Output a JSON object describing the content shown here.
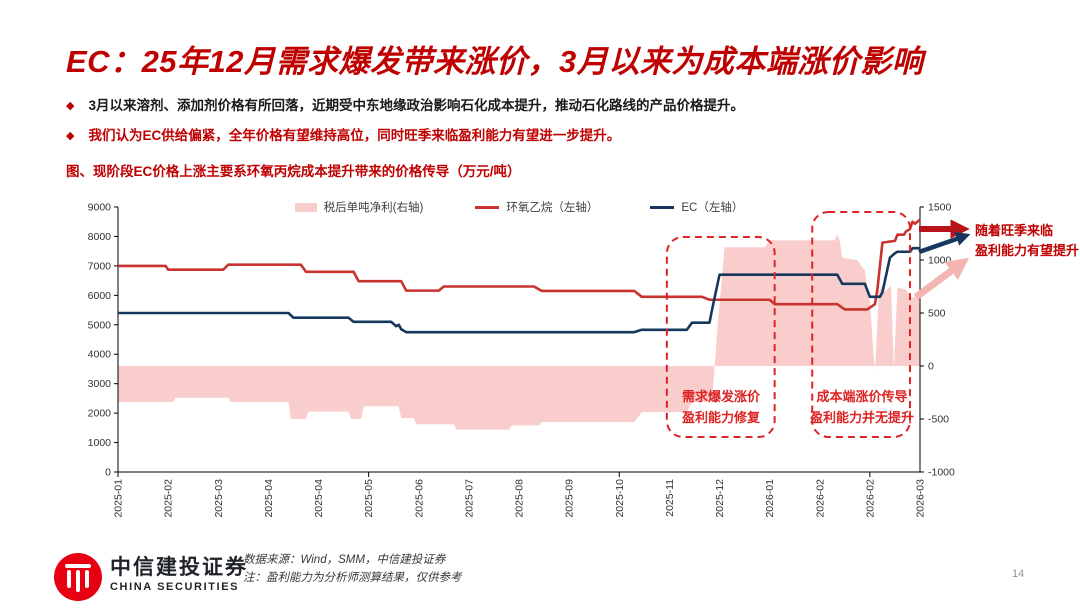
{
  "slide": {
    "title": "EC：25年12月需求爆发带来涨价，3月以来为成本端涨价影响",
    "bullets": [
      {
        "text": "3月以来溶剂、添加剂价格有所回落，近期受中东地缘政治影响石化成本提升，推动石化路线的产品价格提升。"
      },
      {
        "text": "我们认为EC供给偏紧，全年价格有望维持高位，同时旺季来临盈利能力有望进一步提升。"
      }
    ],
    "chart_caption": "图、现阶段EC价格上涨主要系环氧丙烷成本提升带来的价格传导（万元/吨）",
    "page_number": "14"
  },
  "footer": {
    "logo_cn": "中信建投证券",
    "logo_en": "CHINA SECURITIES",
    "source_line": "数据来源：Wind，SMM，中信建投证券",
    "note_line": "注：盈利能力为分析师测算结果，仅供参考"
  },
  "colors": {
    "title_red": "#bf0000",
    "annotation_red": "#dd2424",
    "eo_line": "#c9332f",
    "ec_line": "#17375e",
    "profit_area": "#facdcd",
    "arrow_red": "#b8131b",
    "arrow_blue": "#17375e",
    "arrow_pink": "#f2b5b1"
  },
  "chart_data": {
    "type": "line",
    "title": "图、现阶段EC价格上涨主要系环氧丙烷成本提升带来的价格传导（万元/吨）",
    "legend_position": "top",
    "grid": false,
    "x_labels": [
      "2025-01",
      "2025-02",
      "2025-03",
      "2025-04",
      "2025-04",
      "2025-05",
      "2025-06",
      "2025-07",
      "2025-08",
      "2025-09",
      "2025-10",
      "2025-11",
      "2025-12",
      "2026-01",
      "2026-02",
      "2026-02",
      "2026-03"
    ],
    "left_axis": {
      "min": 0,
      "max": 9000,
      "step": 1000
    },
    "right_axis": {
      "min": -1000,
      "max": 1500,
      "step": 500
    },
    "series": [
      {
        "name": "税后单吨净利(右轴)",
        "type": "area",
        "axis": "right",
        "color": "#facdcd",
        "points": [
          [
            0,
            -340
          ],
          [
            1.1,
            -340
          ],
          [
            1.15,
            -300
          ],
          [
            2.2,
            -300
          ],
          [
            2.25,
            -340
          ],
          [
            3.4,
            -340
          ],
          [
            3.45,
            -500
          ],
          [
            3.75,
            -500
          ],
          [
            3.8,
            -430
          ],
          [
            4.6,
            -430
          ],
          [
            4.65,
            -500
          ],
          [
            4.85,
            -500
          ],
          [
            4.9,
            -380
          ],
          [
            5.6,
            -380
          ],
          [
            5.65,
            -490
          ],
          [
            5.9,
            -490
          ],
          [
            5.95,
            -550
          ],
          [
            6.7,
            -550
          ],
          [
            6.75,
            -600
          ],
          [
            7.8,
            -600
          ],
          [
            7.85,
            -560
          ],
          [
            8.4,
            -560
          ],
          [
            8.45,
            -530
          ],
          [
            10.3,
            -530
          ],
          [
            10.45,
            -435
          ],
          [
            11.35,
            -435
          ],
          [
            11.45,
            -340
          ],
          [
            11.85,
            -340
          ],
          [
            11.95,
            300
          ],
          [
            12.1,
            1120
          ],
          [
            12.9,
            1120
          ],
          [
            13.0,
            1185
          ],
          [
            14.3,
            1185
          ],
          [
            14.35,
            1240
          ],
          [
            14.4,
            1185
          ],
          [
            14.45,
            1020
          ],
          [
            14.75,
            1000
          ],
          [
            14.9,
            900
          ],
          [
            15.0,
            600
          ],
          [
            15.1,
            -60
          ],
          [
            15.18,
            700
          ],
          [
            15.25,
            760
          ],
          [
            15.3,
            700
          ],
          [
            15.42,
            760
          ],
          [
            15.48,
            -20
          ],
          [
            15.55,
            740
          ],
          [
            15.72,
            720
          ],
          [
            15.85,
            640
          ],
          [
            16,
            700
          ]
        ]
      },
      {
        "name": "环氧乙烷（左轴）",
        "type": "line",
        "axis": "left",
        "color": "#c9332f",
        "points": [
          [
            0,
            7000
          ],
          [
            0.95,
            7000
          ],
          [
            1.0,
            6870
          ],
          [
            2.1,
            6870
          ],
          [
            2.2,
            7040
          ],
          [
            3.65,
            7040
          ],
          [
            3.75,
            6800
          ],
          [
            4.7,
            6800
          ],
          [
            4.8,
            6480
          ],
          [
            5.65,
            6480
          ],
          [
            5.75,
            6160
          ],
          [
            6.4,
            6160
          ],
          [
            6.5,
            6300
          ],
          [
            8.3,
            6300
          ],
          [
            8.45,
            6150
          ],
          [
            10.3,
            6150
          ],
          [
            10.45,
            5950
          ],
          [
            11.65,
            5950
          ],
          [
            11.8,
            5850
          ],
          [
            13.0,
            5850
          ],
          [
            13.1,
            5700
          ],
          [
            14.35,
            5700
          ],
          [
            14.5,
            5520
          ],
          [
            14.95,
            5520
          ],
          [
            15.1,
            5700
          ],
          [
            15.15,
            6200
          ],
          [
            15.25,
            7790
          ],
          [
            15.5,
            7850
          ],
          [
            15.55,
            8060
          ],
          [
            15.68,
            8060
          ],
          [
            15.72,
            8170
          ],
          [
            15.8,
            8250
          ],
          [
            15.85,
            8500
          ],
          [
            15.9,
            8430
          ],
          [
            16,
            8570
          ]
        ]
      },
      {
        "name": "EC（左轴）",
        "type": "line",
        "axis": "left",
        "color": "#17375e",
        "points": [
          [
            0,
            5400
          ],
          [
            3.4,
            5400
          ],
          [
            3.5,
            5240
          ],
          [
            4.6,
            5240
          ],
          [
            4.7,
            5100
          ],
          [
            5.45,
            5100
          ],
          [
            5.55,
            4950
          ],
          [
            5.6,
            5000
          ],
          [
            5.65,
            4850
          ],
          [
            5.75,
            4750
          ],
          [
            10.3,
            4750
          ],
          [
            10.45,
            4830
          ],
          [
            11.35,
            4830
          ],
          [
            11.45,
            5070
          ],
          [
            11.8,
            5070
          ],
          [
            11.85,
            5500
          ],
          [
            12.0,
            6700
          ],
          [
            14.35,
            6700
          ],
          [
            14.45,
            6390
          ],
          [
            14.9,
            6390
          ],
          [
            15.0,
            5950
          ],
          [
            15.2,
            5950
          ],
          [
            15.25,
            6100
          ],
          [
            15.4,
            7280
          ],
          [
            15.5,
            7430
          ],
          [
            15.55,
            7480
          ],
          [
            15.8,
            7480
          ],
          [
            15.85,
            7600
          ],
          [
            16,
            7600
          ]
        ]
      }
    ],
    "annotation_boxes": [
      {
        "u1": 10.95,
        "u2": 13.1,
        "v1": 1190,
        "v2": 7980,
        "line1": "需求爆发涨价",
        "line2": "盈利能力修复"
      },
      {
        "u1": 13.85,
        "u2": 15.8,
        "v1": 1190,
        "v2": 8830,
        "line1": "成本端涨价传导",
        "line2": "盈利能力并无提升"
      }
    ],
    "right_note": {
      "line1": "随着旺季来临",
      "line2": "盈利能力有望提升"
    },
    "arrows": [
      {
        "name": "red-arrow",
        "color": "#b8131b",
        "from": [
          919,
          229
        ],
        "to": [
          962,
          229
        ],
        "width": 6
      },
      {
        "name": "blue-arrow",
        "color": "#17375e",
        "from": [
          919,
          252
        ],
        "to": [
          965,
          236
        ],
        "width": 4.5
      },
      {
        "name": "pink-arrow",
        "color": "#f2b5b1",
        "from": [
          916,
          297
        ],
        "to": [
          962,
          263
        ],
        "width": 7
      }
    ]
  }
}
